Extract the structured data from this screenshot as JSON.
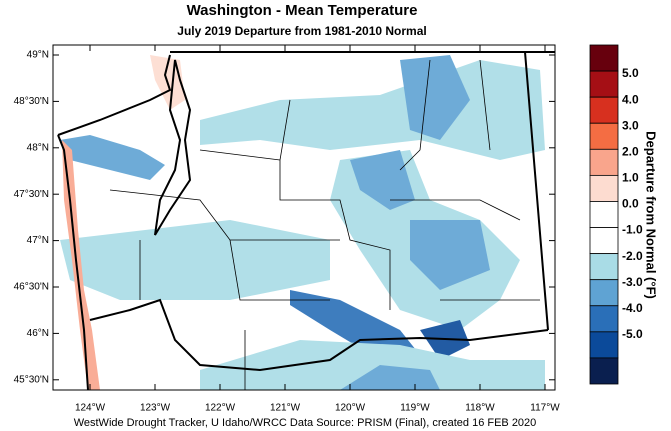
{
  "title": "Washington - Mean Temperature",
  "subtitle": "July 2019  Departure from 1981-2010 Normal",
  "latitude_labels": [
    "49°N",
    "48°30'N",
    "48°N",
    "47°30'N",
    "47°N",
    "46°30'N",
    "46°N",
    "45°30'N"
  ],
  "longitude_labels": [
    "124°W",
    "123°W",
    "122°W",
    "121°W",
    "120°W",
    "119°W",
    "118°W",
    "117°W"
  ],
  "legend": {
    "title": "Departure from Normal (°F)",
    "labels": [
      "5.0",
      "4.0",
      "3.0",
      "2.0",
      "1.0",
      "0.0",
      "-1.0",
      "-2.0",
      "-3.0",
      "-4.0",
      "-5.0"
    ],
    "colors": [
      "#67000d",
      "#a50f15",
      "#d7301f",
      "#f46d43",
      "#f9a58c",
      "#fddcd0",
      "#ffffff",
      "#ffffff",
      "#a9dce6",
      "#5fa3d3",
      "#2a6fb8",
      "#0b4a9a",
      "#0a1f4f"
    ]
  },
  "footer": "WestWide Drought Tracker, U Idaho/WRCC Data Source: PRISM (Final), created 16 FEB 2020"
}
